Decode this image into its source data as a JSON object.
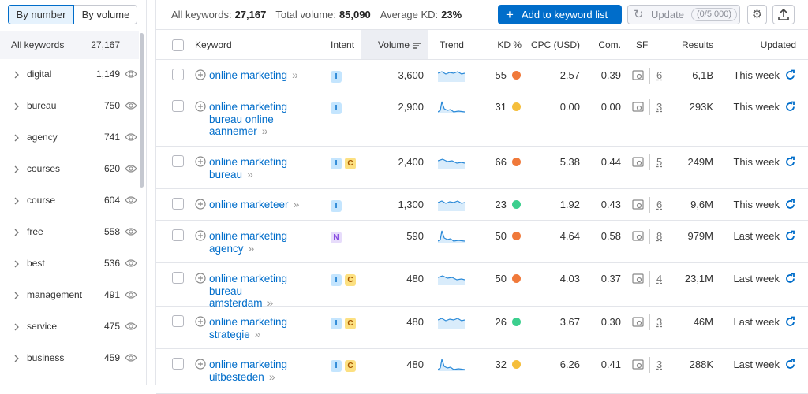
{
  "sidebar": {
    "tabs": [
      "By number",
      "By volume"
    ],
    "all": {
      "label": "All keywords",
      "count": "27,167"
    },
    "groups": [
      {
        "label": "digital",
        "count": "1,149"
      },
      {
        "label": "bureau",
        "count": "750"
      },
      {
        "label": "agency",
        "count": "741"
      },
      {
        "label": "courses",
        "count": "620"
      },
      {
        "label": "course",
        "count": "604"
      },
      {
        "label": "free",
        "count": "558"
      },
      {
        "label": "best",
        "count": "536"
      },
      {
        "label": "management",
        "count": "491"
      },
      {
        "label": "service",
        "count": "475"
      },
      {
        "label": "business",
        "count": "459"
      }
    ]
  },
  "stats": [
    {
      "label": "All keywords:",
      "value": "27,167"
    },
    {
      "label": "Total volume:",
      "value": "85,090"
    },
    {
      "label": "Average KD:",
      "value": "23%"
    }
  ],
  "toolbar": {
    "add_button": "Add to keyword list",
    "update_button": "Update",
    "update_count": "0/5,000"
  },
  "table": {
    "columns": [
      "Keyword",
      "Intent",
      "Volume",
      "Trend",
      "KD %",
      "CPC (USD)",
      "Com.",
      "SF",
      "Results",
      "Updated"
    ],
    "rows": [
      {
        "keyword": "online marketing",
        "intent": [
          "I"
        ],
        "volume": "3,600",
        "kd": "55",
        "kd_color": "#f0793a",
        "cpc": "2.57",
        "com": "0.39",
        "sf": "6",
        "results": "6,1B",
        "updated": "This week"
      },
      {
        "keyword": "online marketing bureau online aannemer",
        "intent": [
          "I"
        ],
        "volume": "2,900",
        "kd": "31",
        "kd_color": "#f5be3b",
        "cpc": "0.00",
        "com": "0.00",
        "sf": "3",
        "results": "293K",
        "updated": "This week"
      },
      {
        "keyword": "online marketing bureau",
        "intent": [
          "I",
          "C"
        ],
        "volume": "2,400",
        "kd": "66",
        "kd_color": "#f0793a",
        "cpc": "5.38",
        "com": "0.44",
        "sf": "5",
        "results": "249M",
        "updated": "This week"
      },
      {
        "keyword": "online marketeer",
        "intent": [
          "I"
        ],
        "volume": "1,300",
        "kd": "23",
        "kd_color": "#3ccf8e",
        "cpc": "1.92",
        "com": "0.43",
        "sf": "6",
        "results": "9,6M",
        "updated": "This week"
      },
      {
        "keyword": "online marketing agency",
        "intent": [
          "N"
        ],
        "volume": "590",
        "kd": "50",
        "kd_color": "#f0793a",
        "cpc": "4.64",
        "com": "0.58",
        "sf": "8",
        "results": "979M",
        "updated": "Last week"
      },
      {
        "keyword": "online marketing bureau amsterdam",
        "intent": [
          "I",
          "C"
        ],
        "volume": "480",
        "kd": "50",
        "kd_color": "#f0793a",
        "cpc": "4.03",
        "com": "0.37",
        "sf": "4",
        "results": "23,1M",
        "updated": "Last week"
      },
      {
        "keyword": "online marketing strategie",
        "intent": [
          "I",
          "C"
        ],
        "volume": "480",
        "kd": "26",
        "kd_color": "#3ccf8e",
        "cpc": "3.67",
        "com": "0.30",
        "sf": "3",
        "results": "46M",
        "updated": "Last week"
      },
      {
        "keyword": "online marketing uitbesteden",
        "intent": [
          "I",
          "C"
        ],
        "volume": "480",
        "kd": "32",
        "kd_color": "#f5be3b",
        "cpc": "6.26",
        "com": "0.41",
        "sf": "3",
        "results": "288K",
        "updated": "Last week"
      }
    ]
  }
}
